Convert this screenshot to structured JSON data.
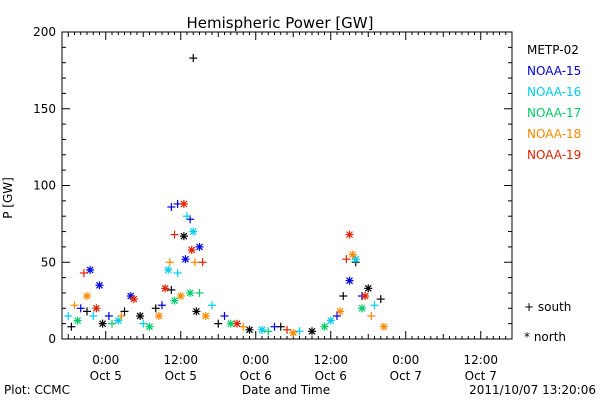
{
  "chart_data": {
    "type": "scatter",
    "title": "Hemispheric Power [GW]",
    "xlabel": "Date and Time",
    "ylabel": "P [GW]",
    "xlim": [
      "2011-10-04T17:00",
      "2011-10-07T17:00"
    ],
    "ylim": [
      0,
      200
    ],
    "yticks": [
      0,
      50,
      100,
      150,
      200
    ],
    "xticks": [
      {
        "t": "2011-10-05T00:00",
        "line1": "0:00",
        "line2": "Oct 5"
      },
      {
        "t": "2011-10-05T12:00",
        "line1": "12:00",
        "line2": "Oct 5"
      },
      {
        "t": "2011-10-06T00:00",
        "line1": "0:00",
        "line2": "Oct 6"
      },
      {
        "t": "2011-10-06T12:00",
        "line1": "12:00",
        "line2": "Oct 6"
      },
      {
        "t": "2011-10-07T00:00",
        "line1": "0:00",
        "line2": "Oct 7"
      },
      {
        "t": "2011-10-07T12:00",
        "line1": "12:00",
        "line2": "Oct 7"
      }
    ],
    "legend_position": "right",
    "marker_legend": [
      {
        "symbol": "+",
        "label": "south"
      },
      {
        "symbol": "*",
        "label": "north"
      }
    ],
    "series": [
      {
        "name": "METP-02",
        "color": "#000000",
        "points": [
          {
            "t": "2011-10-04T18:30",
            "y": 8,
            "m": "+"
          },
          {
            "t": "2011-10-04T21:00",
            "y": 18,
            "m": "+"
          },
          {
            "t": "2011-10-04T23:30",
            "y": 10,
            "m": "*"
          },
          {
            "t": "2011-10-05T03:00",
            "y": 18,
            "m": "+"
          },
          {
            "t": "2011-10-05T05:30",
            "y": 15,
            "m": "*"
          },
          {
            "t": "2011-10-05T08:00",
            "y": 20,
            "m": "+"
          },
          {
            "t": "2011-10-05T10:30",
            "y": 32,
            "m": "+"
          },
          {
            "t": "2011-10-05T12:30",
            "y": 67,
            "m": "*"
          },
          {
            "t": "2011-10-05T14:00",
            "y": 183,
            "m": "+"
          },
          {
            "t": "2011-10-05T14:30",
            "y": 18,
            "m": "*"
          },
          {
            "t": "2011-10-05T18:00",
            "y": 10,
            "m": "+"
          },
          {
            "t": "2011-10-05T23:00",
            "y": 6,
            "m": "*"
          },
          {
            "t": "2011-10-06T04:00",
            "y": 8,
            "m": "+"
          },
          {
            "t": "2011-10-06T09:00",
            "y": 5,
            "m": "*"
          },
          {
            "t": "2011-10-06T14:00",
            "y": 28,
            "m": "+"
          },
          {
            "t": "2011-10-06T16:00",
            "y": 50,
            "m": "+"
          },
          {
            "t": "2011-10-06T18:00",
            "y": 33,
            "m": "*"
          },
          {
            "t": "2011-10-06T20:00",
            "y": 26,
            "m": "+"
          }
        ]
      },
      {
        "name": "NOAA-15",
        "color": "#0000dd",
        "points": [
          {
            "t": "2011-10-04T20:00",
            "y": 20,
            "m": "+"
          },
          {
            "t": "2011-10-04T21:30",
            "y": 45,
            "m": "*"
          },
          {
            "t": "2011-10-04T23:00",
            "y": 35,
            "m": "*"
          },
          {
            "t": "2011-10-05T00:30",
            "y": 15,
            "m": "+"
          },
          {
            "t": "2011-10-05T04:00",
            "y": 28,
            "m": "*"
          },
          {
            "t": "2011-10-05T09:00",
            "y": 22,
            "m": "+"
          },
          {
            "t": "2011-10-05T10:30",
            "y": 86,
            "m": "+"
          },
          {
            "t": "2011-10-05T11:30",
            "y": 88,
            "m": "+"
          },
          {
            "t": "2011-10-05T12:45",
            "y": 52,
            "m": "*"
          },
          {
            "t": "2011-10-05T13:30",
            "y": 78,
            "m": "+"
          },
          {
            "t": "2011-10-05T15:00",
            "y": 60,
            "m": "*"
          },
          {
            "t": "2011-10-05T19:00",
            "y": 15,
            "m": "+"
          },
          {
            "t": "2011-10-06T03:00",
            "y": 8,
            "m": "+"
          },
          {
            "t": "2011-10-06T13:00",
            "y": 15,
            "m": "+"
          },
          {
            "t": "2011-10-06T15:00",
            "y": 38,
            "m": "*"
          },
          {
            "t": "2011-10-06T17:00",
            "y": 28,
            "m": "+"
          }
        ]
      },
      {
        "name": "NOAA-16",
        "color": "#00ccee",
        "points": [
          {
            "t": "2011-10-04T18:00",
            "y": 15,
            "m": "+"
          },
          {
            "t": "2011-10-04T22:00",
            "y": 15,
            "m": "+"
          },
          {
            "t": "2011-10-05T02:00",
            "y": 12,
            "m": "*"
          },
          {
            "t": "2011-10-05T06:00",
            "y": 10,
            "m": "+"
          },
          {
            "t": "2011-10-05T10:00",
            "y": 45,
            "m": "*"
          },
          {
            "t": "2011-10-05T11:30",
            "y": 43,
            "m": "+"
          },
          {
            "t": "2011-10-05T13:00",
            "y": 80,
            "m": "+"
          },
          {
            "t": "2011-10-05T14:00",
            "y": 70,
            "m": "*"
          },
          {
            "t": "2011-10-05T17:00",
            "y": 22,
            "m": "+"
          },
          {
            "t": "2011-10-06T01:00",
            "y": 6,
            "m": "*"
          },
          {
            "t": "2011-10-06T07:00",
            "y": 5,
            "m": "+"
          },
          {
            "t": "2011-10-06T12:00",
            "y": 12,
            "m": "*"
          },
          {
            "t": "2011-10-06T16:00",
            "y": 52,
            "m": "*"
          },
          {
            "t": "2011-10-06T19:00",
            "y": 22,
            "m": "+"
          }
        ]
      },
      {
        "name": "NOAA-17",
        "color": "#00cc66",
        "points": [
          {
            "t": "2011-10-04T19:30",
            "y": 12,
            "m": "*"
          },
          {
            "t": "2011-10-05T01:00",
            "y": 10,
            "m": "+"
          },
          {
            "t": "2011-10-05T07:00",
            "y": 8,
            "m": "*"
          },
          {
            "t": "2011-10-05T11:00",
            "y": 25,
            "m": "*"
          },
          {
            "t": "2011-10-05T13:30",
            "y": 30,
            "m": "*"
          },
          {
            "t": "2011-10-05T15:00",
            "y": 30,
            "m": "+"
          },
          {
            "t": "2011-10-05T20:00",
            "y": 10,
            "m": "*"
          },
          {
            "t": "2011-10-06T02:00",
            "y": 5,
            "m": "+"
          },
          {
            "t": "2011-10-06T11:00",
            "y": 8,
            "m": "*"
          },
          {
            "t": "2011-10-06T17:00",
            "y": 20,
            "m": "*"
          }
        ]
      },
      {
        "name": "NOAA-18",
        "color": "#ff8800",
        "points": [
          {
            "t": "2011-10-04T19:00",
            "y": 22,
            "m": "+"
          },
          {
            "t": "2011-10-04T21:00",
            "y": 28,
            "m": "*"
          },
          {
            "t": "2011-10-05T02:30",
            "y": 15,
            "m": "+"
          },
          {
            "t": "2011-10-05T08:30",
            "y": 15,
            "m": "*"
          },
          {
            "t": "2011-10-05T10:15",
            "y": 50,
            "m": "+"
          },
          {
            "t": "2011-10-05T12:00",
            "y": 28,
            "m": "*"
          },
          {
            "t": "2011-10-05T14:15",
            "y": 50,
            "m": "+"
          },
          {
            "t": "2011-10-05T16:00",
            "y": 15,
            "m": "*"
          },
          {
            "t": "2011-10-05T22:00",
            "y": 8,
            "m": "+"
          },
          {
            "t": "2011-10-06T06:00",
            "y": 4,
            "m": "*"
          },
          {
            "t": "2011-10-06T13:30",
            "y": 18,
            "m": "*"
          },
          {
            "t": "2011-10-06T15:30",
            "y": 55,
            "m": "*"
          },
          {
            "t": "2011-10-06T18:30",
            "y": 15,
            "m": "+"
          },
          {
            "t": "2011-10-06T20:30",
            "y": 8,
            "m": "*"
          }
        ]
      },
      {
        "name": "NOAA-19",
        "color": "#dd2200",
        "points": [
          {
            "t": "2011-10-04T20:30",
            "y": 43,
            "m": "+"
          },
          {
            "t": "2011-10-04T22:30",
            "y": 20,
            "m": "*"
          },
          {
            "t": "2011-10-05T04:30",
            "y": 26,
            "m": "*"
          },
          {
            "t": "2011-10-05T09:30",
            "y": 33,
            "m": "*"
          },
          {
            "t": "2011-10-05T11:00",
            "y": 68,
            "m": "+"
          },
          {
            "t": "2011-10-05T12:30",
            "y": 88,
            "m": "*"
          },
          {
            "t": "2011-10-05T13:45",
            "y": 58,
            "m": "*"
          },
          {
            "t": "2011-10-05T15:30",
            "y": 50,
            "m": "+"
          },
          {
            "t": "2011-10-05T21:00",
            "y": 10,
            "m": "*"
          },
          {
            "t": "2011-10-06T05:00",
            "y": 6,
            "m": "+"
          },
          {
            "t": "2011-10-06T14:30",
            "y": 52,
            "m": "+"
          },
          {
            "t": "2011-10-06T15:00",
            "y": 68,
            "m": "*"
          },
          {
            "t": "2011-10-06T17:30",
            "y": 28,
            "m": "*"
          }
        ]
      }
    ]
  },
  "footer": {
    "plot_credit": "Plot: CCMC",
    "timestamp": "2011/10/07 13:20:06"
  }
}
